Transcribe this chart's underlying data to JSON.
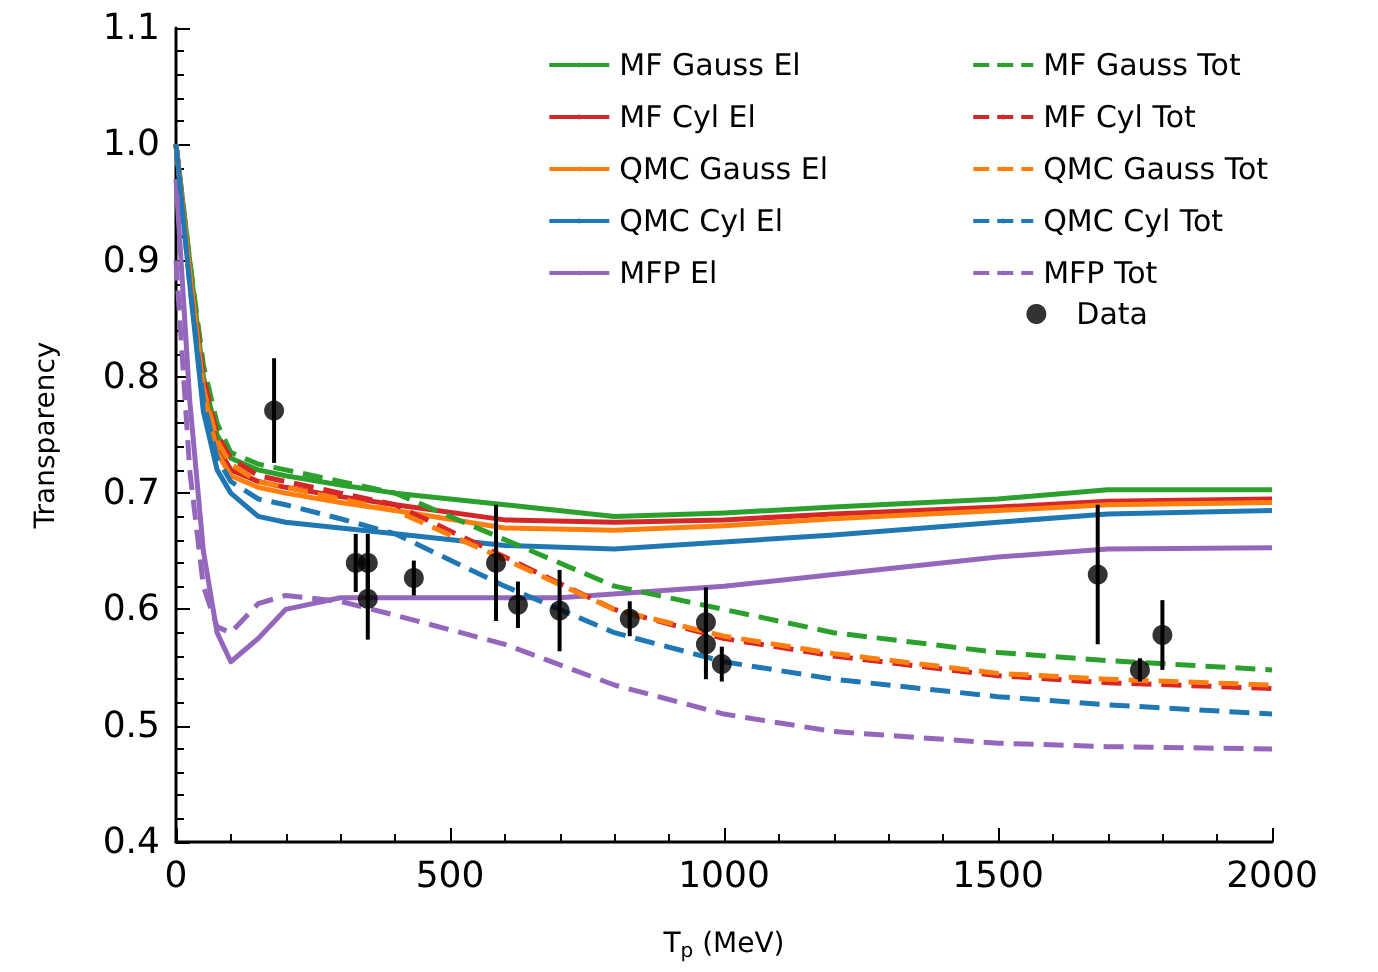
{
  "chart_data": {
    "type": "line",
    "xlabel": "T$_{p}$ (MeV)",
    "ylabel": "Transparency",
    "xlim": [
      0,
      2000
    ],
    "xticks": [
      0,
      500,
      1000,
      1500,
      2000
    ],
    "ylim": [
      0.4,
      1.1
    ],
    "yticks": [
      {
        "value": 0.4,
        "label": "0.4"
      },
      {
        "value": 0.5,
        "label": "0.5"
      },
      {
        "value": 0.6,
        "label": "0.6"
      },
      {
        "value": 0.7,
        "label": "0.7"
      },
      {
        "value": 0.8,
        "label": "0.8"
      },
      {
        "value": 0.9,
        "label": "0.9"
      },
      {
        "value": 1.0,
        "label": "1.0"
      },
      {
        "value": 1.1,
        "label": "1.1"
      }
    ],
    "legend": "top right",
    "grid": false,
    "series": [
      {
        "name": "MF Gauss El",
        "color": "#2ca02c",
        "line_style": "solid",
        "x": [
          0,
          25,
          50,
          75,
          100,
          150,
          200,
          300,
          400,
          600,
          800,
          1000,
          1200,
          1500,
          1700,
          2000
        ],
        "values": [
          1.0,
          0.9,
          0.8,
          0.75,
          0.73,
          0.72,
          0.715,
          0.707,
          0.7,
          0.69,
          0.68,
          0.683,
          0.688,
          0.695,
          0.703,
          0.703
        ]
      },
      {
        "name": "MF Cyl El",
        "color": "#d62728",
        "line_style": "solid",
        "x": [
          0,
          25,
          50,
          75,
          100,
          150,
          200,
          300,
          400,
          600,
          800,
          1000,
          1200,
          1500,
          1700,
          2000
        ],
        "values": [
          1.0,
          0.89,
          0.79,
          0.74,
          0.72,
          0.71,
          0.705,
          0.697,
          0.69,
          0.677,
          0.675,
          0.677,
          0.682,
          0.688,
          0.693,
          0.695
        ]
      },
      {
        "name": "QMC Gauss El",
        "color": "#ff7f0e",
        "line_style": "solid",
        "x": [
          0,
          25,
          50,
          75,
          100,
          150,
          200,
          300,
          400,
          600,
          800,
          1000,
          1200,
          1500,
          1700,
          2000
        ],
        "values": [
          1.0,
          0.89,
          0.79,
          0.735,
          0.715,
          0.705,
          0.7,
          0.692,
          0.685,
          0.67,
          0.668,
          0.672,
          0.678,
          0.685,
          0.69,
          0.692
        ]
      },
      {
        "name": "QMC Cyl El",
        "color": "#1f77b4",
        "line_style": "solid",
        "x": [
          0,
          25,
          50,
          75,
          100,
          150,
          200,
          300,
          400,
          600,
          800,
          1000,
          1200,
          1500,
          1700,
          2000
        ],
        "values": [
          1.0,
          0.88,
          0.77,
          0.72,
          0.7,
          0.68,
          0.675,
          0.67,
          0.665,
          0.655,
          0.652,
          0.658,
          0.664,
          0.675,
          0.682,
          0.685
        ]
      },
      {
        "name": "MFP El",
        "color": "#9467bd",
        "line_style": "solid",
        "x": [
          0,
          25,
          50,
          75,
          100,
          150,
          200,
          300,
          500,
          700,
          1000,
          1200,
          1500,
          1700,
          2000
        ],
        "values": [
          0.97,
          0.78,
          0.65,
          0.58,
          0.555,
          0.575,
          0.6,
          0.61,
          0.61,
          0.61,
          0.62,
          0.63,
          0.645,
          0.652,
          0.653
        ]
      },
      {
        "name": "MF Gauss Tot",
        "color": "#2ca02c",
        "line_style": "dashed",
        "x": [
          0,
          25,
          50,
          75,
          100,
          150,
          200,
          300,
          400,
          600,
          800,
          1000,
          1200,
          1500,
          1700,
          2000
        ],
        "values": [
          1.0,
          0.9,
          0.81,
          0.76,
          0.735,
          0.725,
          0.72,
          0.71,
          0.7,
          0.66,
          0.62,
          0.6,
          0.58,
          0.563,
          0.556,
          0.548
        ]
      },
      {
        "name": "MF Cyl Tot",
        "color": "#d62728",
        "line_style": "dashed",
        "x": [
          0,
          25,
          50,
          75,
          100,
          150,
          200,
          300,
          400,
          600,
          800,
          1000,
          1200,
          1500,
          1700,
          2000
        ],
        "values": [
          1.0,
          0.89,
          0.8,
          0.75,
          0.73,
          0.715,
          0.71,
          0.7,
          0.69,
          0.645,
          0.6,
          0.575,
          0.56,
          0.543,
          0.537,
          0.532
        ]
      },
      {
        "name": "QMC Gauss Tot",
        "color": "#ff7f0e",
        "line_style": "dashed",
        "x": [
          0,
          25,
          50,
          75,
          100,
          150,
          200,
          300,
          400,
          600,
          800,
          1000,
          1200,
          1500,
          1700,
          2000
        ],
        "values": [
          1.0,
          0.89,
          0.79,
          0.745,
          0.725,
          0.71,
          0.705,
          0.695,
          0.685,
          0.643,
          0.6,
          0.577,
          0.562,
          0.545,
          0.54,
          0.535
        ]
      },
      {
        "name": "QMC Cyl Tot",
        "color": "#1f77b4",
        "line_style": "dashed",
        "x": [
          0,
          25,
          50,
          75,
          100,
          150,
          200,
          300,
          400,
          600,
          800,
          1000,
          1200,
          1500,
          1700,
          2000
        ],
        "values": [
          1.0,
          0.88,
          0.78,
          0.73,
          0.71,
          0.695,
          0.69,
          0.678,
          0.665,
          0.62,
          0.58,
          0.555,
          0.54,
          0.525,
          0.518,
          0.51
        ]
      },
      {
        "name": "MFP Tot",
        "color": "#9467bd",
        "line_style": "dashed",
        "x": [
          0,
          25,
          50,
          75,
          100,
          150,
          200,
          300,
          400,
          600,
          800,
          1000,
          1200,
          1500,
          1700,
          2000
        ],
        "values": [
          0.9,
          0.72,
          0.62,
          0.585,
          0.58,
          0.605,
          0.612,
          0.607,
          0.595,
          0.57,
          0.535,
          0.51,
          0.495,
          0.485,
          0.482,
          0.48
        ]
      },
      {
        "name": "Data",
        "type": "scatter",
        "color": "#000000",
        "marker": "circle",
        "x": [
          179,
          328,
          350,
          350,
          434,
          584,
          624,
          700,
          828,
          967,
          967,
          996,
          1682,
          1759,
          1800
        ],
        "values": [
          0.771,
          0.64,
          0.64,
          0.609,
          0.627,
          0.64,
          0.604,
          0.599,
          0.592,
          0.589,
          0.57,
          0.553,
          0.63,
          0.548,
          0.578
        ],
        "errors": [
          0.045,
          0.025,
          0.025,
          0.035,
          0.015,
          0.05,
          0.02,
          0.035,
          0.015,
          0.03,
          0.03,
          0.015,
          0.06,
          0.01,
          0.03
        ]
      }
    ]
  }
}
